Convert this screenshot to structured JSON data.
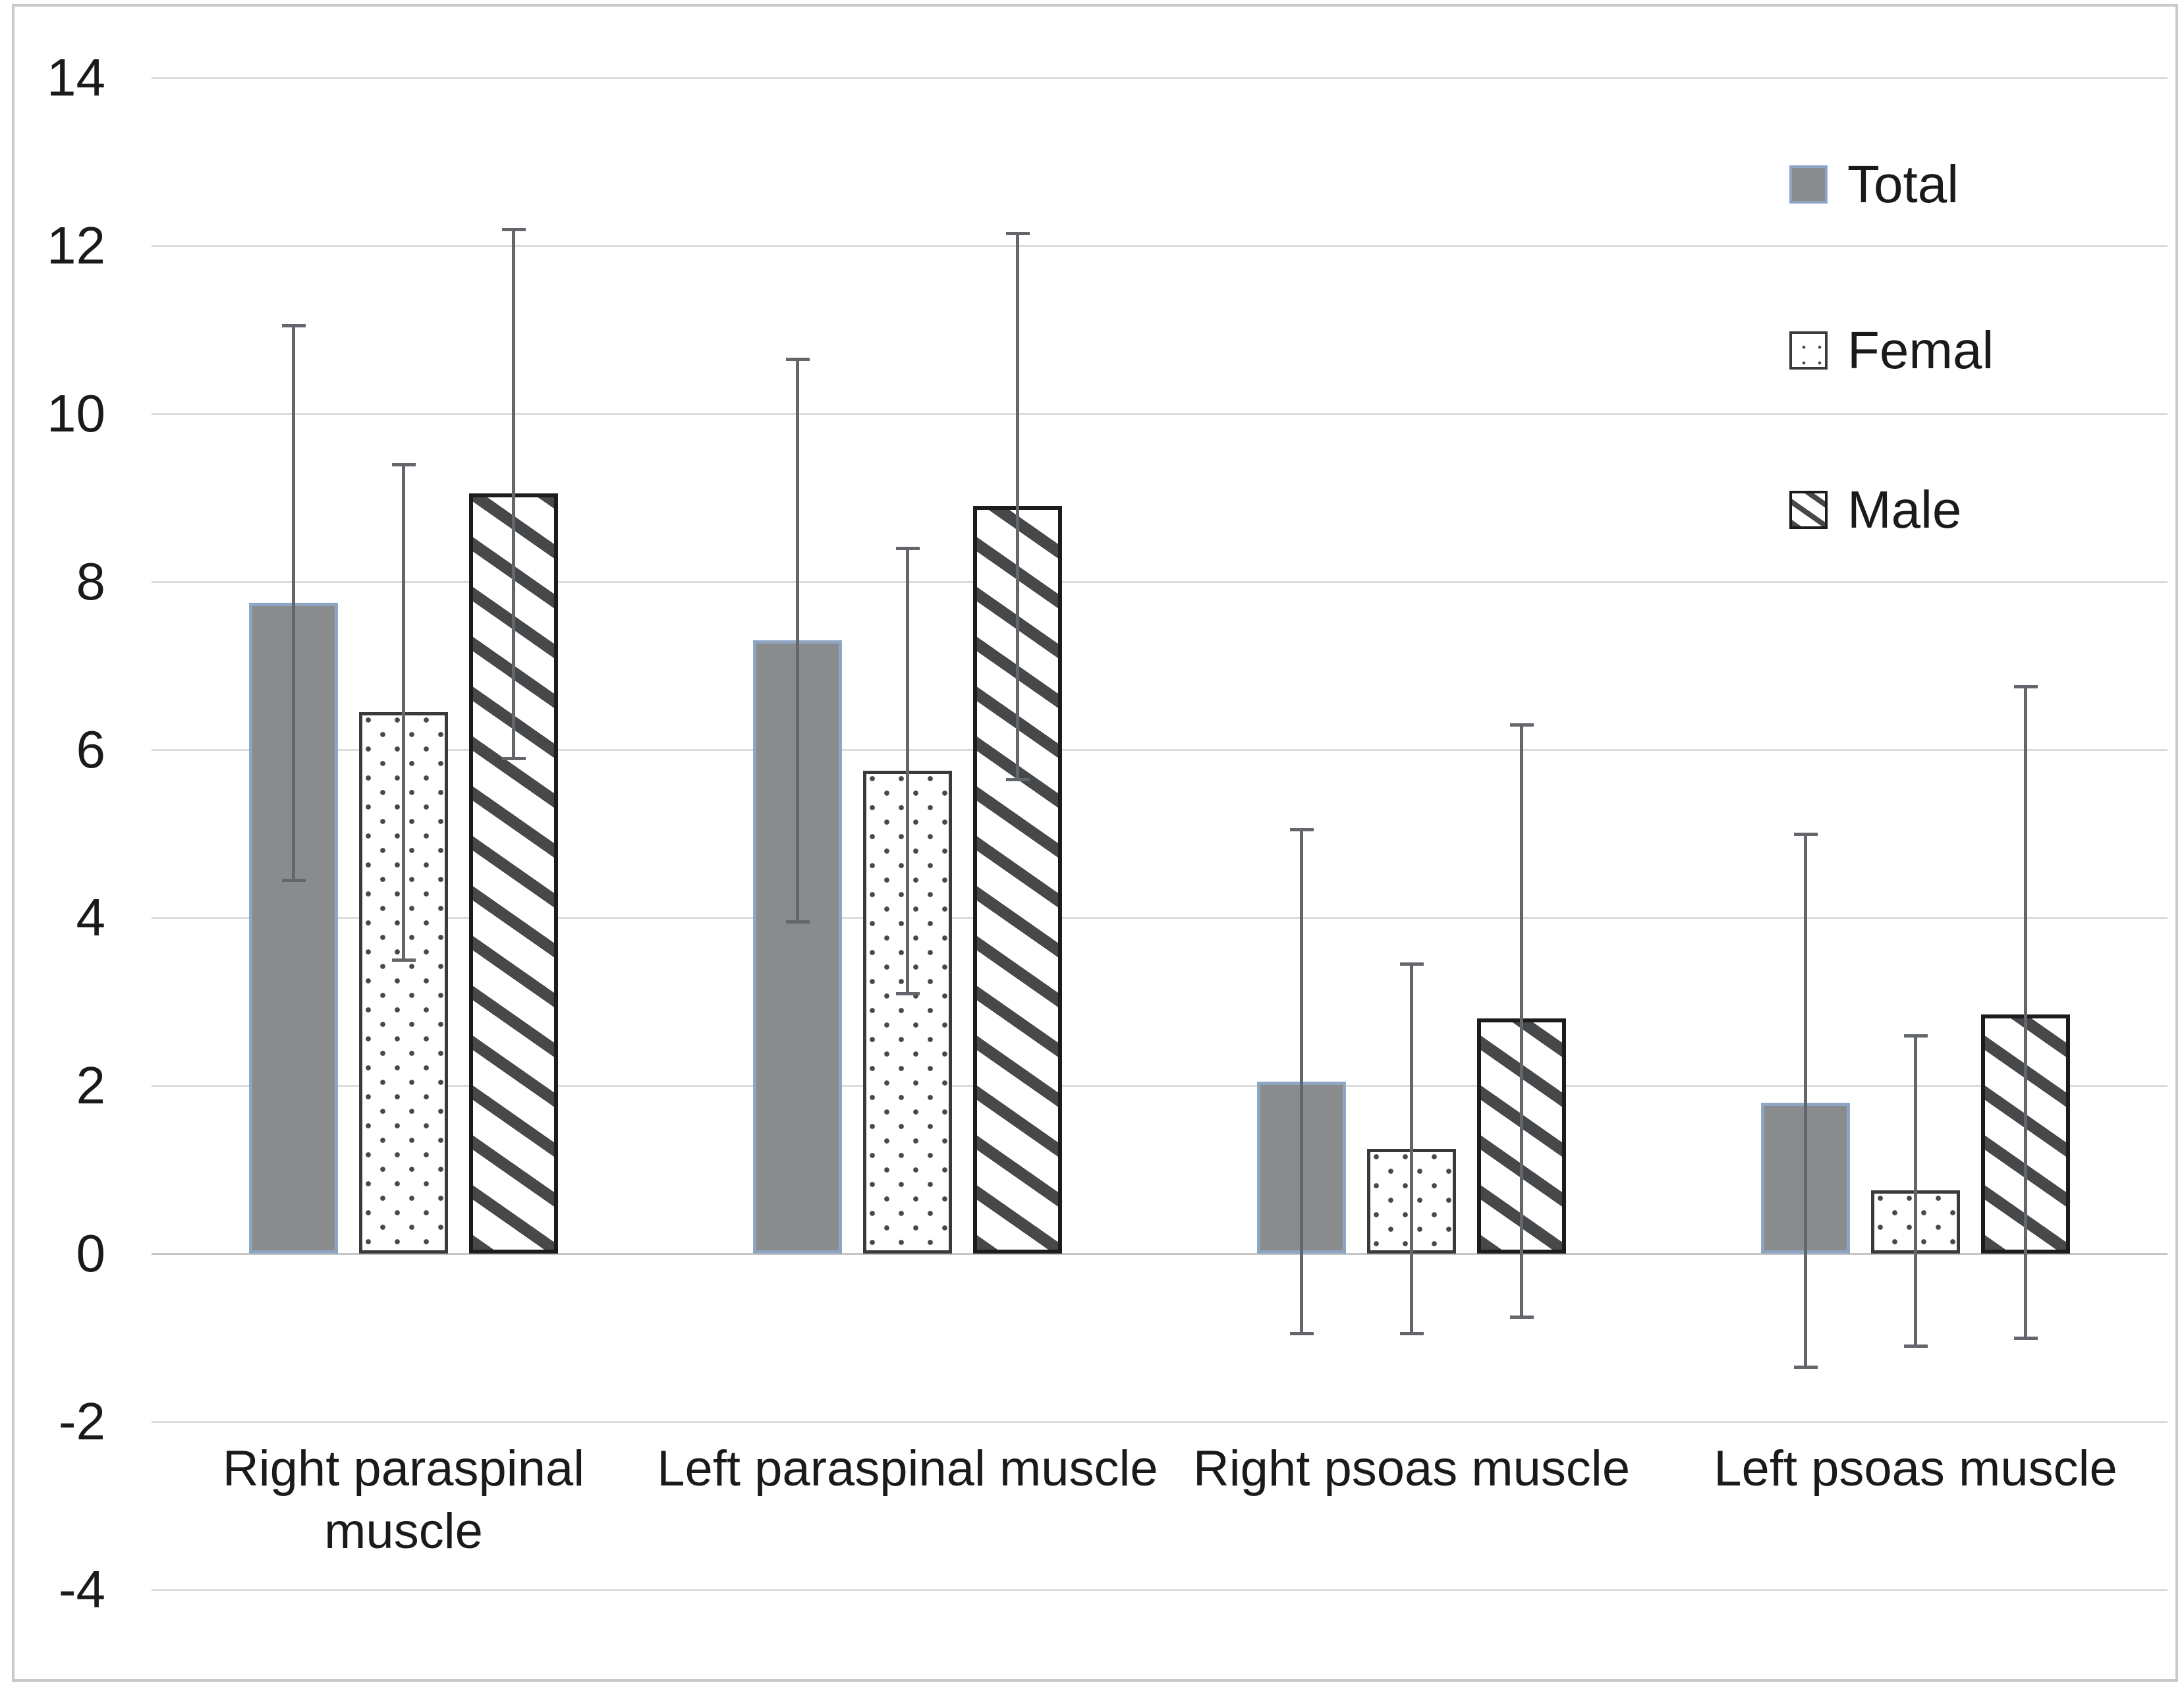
{
  "chart_data": {
    "type": "bar",
    "title": "",
    "xlabel": "",
    "ylabel": "",
    "grid": true,
    "error_bars": true,
    "legend_position": "top-right",
    "ylim": [
      -4,
      14
    ],
    "ytick_step": 2,
    "yticks": [
      14,
      12,
      10,
      8,
      6,
      4,
      2,
      0,
      -2,
      -4
    ],
    "categories": [
      "Right paraspinal muscle",
      "Left paraspinal muscle",
      "Right psoas muscle",
      "Left psoas muscle"
    ],
    "series": [
      {
        "name": "Total",
        "style": "total",
        "values": [
          7.75,
          7.3,
          2.05,
          1.8
        ],
        "error_low": [
          4.45,
          3.95,
          -0.95,
          -1.35
        ],
        "error_high": [
          11.05,
          10.65,
          5.05,
          5.0
        ]
      },
      {
        "name": "Femal",
        "style": "femal",
        "values": [
          6.45,
          5.75,
          1.25,
          0.75
        ],
        "error_low": [
          3.5,
          3.1,
          -0.95,
          -1.1
        ],
        "error_high": [
          9.4,
          8.4,
          3.45,
          2.6
        ]
      },
      {
        "name": "Male",
        "style": "male",
        "values": [
          9.05,
          8.9,
          2.8,
          2.85
        ],
        "error_low": [
          5.9,
          5.65,
          -0.75,
          -1.0
        ],
        "error_high": [
          12.2,
          12.15,
          6.3,
          6.75
        ]
      }
    ]
  },
  "legend": {
    "labels": [
      "Total",
      "Femal",
      "Male"
    ]
  },
  "colors": {
    "bg": "#ffffff",
    "frame_color": "#c9c9c9",
    "grid_color": "#dcdcdc",
    "axis_color": "#c6c6c6",
    "text_color": "#1a1a1a",
    "total_fill": "#8a8b8c",
    "total_border": "#8fa5c4",
    "femal_border": "#3a3a3a",
    "male_border": "#1c1c1c",
    "pattern_ink": "#46484a",
    "error_color": "#63666a"
  }
}
